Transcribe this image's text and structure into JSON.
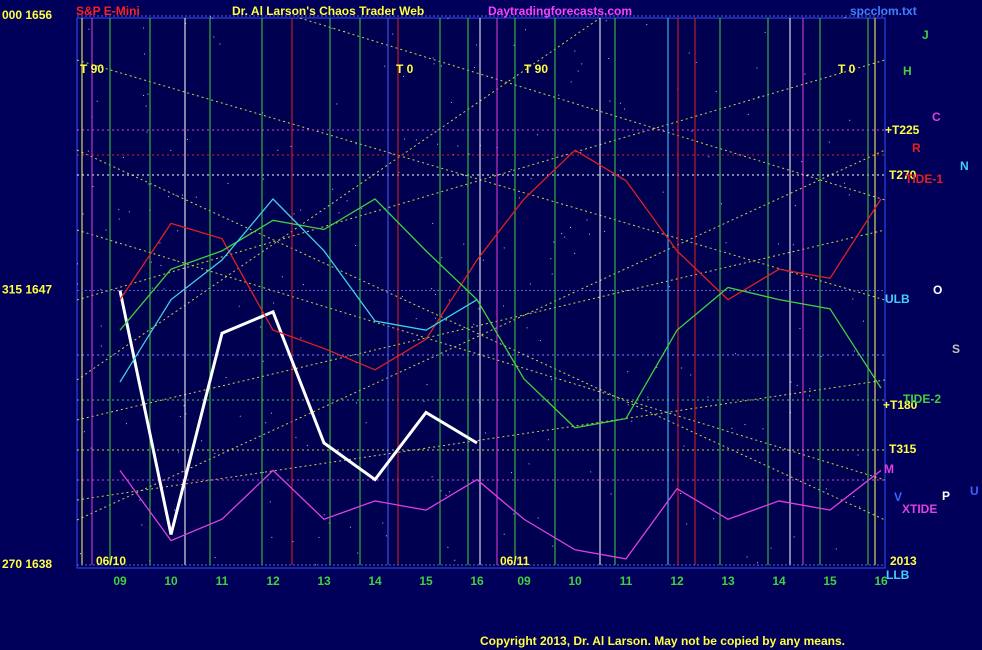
{
  "chart_data": {
    "type": "line",
    "title": "Dr. Al Larson's Chaos Trader Web",
    "annotations": [
      "S&P E-Mini",
      "Daytradingforecasts.com",
      "spcclom.txt",
      "06/10",
      "06/11",
      "2013",
      "Copyright 2013, Dr. Al Larson. May not be copied by any means.",
      "J",
      "H",
      "C",
      "+T225",
      "R",
      "N",
      "T270",
      "TIDE-1",
      "ULB",
      "O",
      "S",
      "+T180",
      "TIDE-2",
      "T315",
      "M",
      "V",
      "P",
      "U",
      "XTIDE",
      "LLB",
      "T  90",
      "T  0",
      "T  90",
      "T  0"
    ],
    "categories": [
      "09",
      "10",
      "11",
      "12",
      "13",
      "14",
      "15",
      "16",
      "09",
      "10",
      "11",
      "12",
      "13",
      "14",
      "15",
      "16"
    ],
    "ylim": [
      1638,
      1656
    ],
    "yticks": [
      {
        "value": 1656,
        "label": "000  1656"
      },
      {
        "value": 1647,
        "label": "315  1647"
      },
      {
        "value": 1638,
        "label": "270  1638"
      }
    ],
    "grid": true,
    "series": [
      {
        "color": "#ffffff",
        "values": [
          1647,
          1639,
          1645.6,
          1646.3,
          1642,
          1640.8,
          1643,
          1642,
          null,
          null,
          null,
          null,
          null,
          null,
          null,
          null
        ]
      },
      {
        "color": "#e02020",
        "values": [
          1646.7,
          1649.2,
          1648.7,
          1645.7,
          1645.1,
          1644.4,
          1645.4,
          1648.0,
          1650.0,
          1651.6,
          1650.6,
          1648.3,
          1646.7,
          1647.7,
          1647.4,
          1650.0
        ]
      },
      {
        "color": "#40d040",
        "values": [
          1645.7,
          1647.7,
          1648.3,
          1649.3,
          1649.0,
          1650.0,
          1648.3,
          1646.7,
          1644.1,
          1642.5,
          1642.8,
          1645.7,
          1647.1,
          1646.7,
          1646.4,
          1643.8
        ]
      },
      {
        "color": "#40d0e0",
        "values": [
          1644.0,
          1646.7,
          1648.0,
          1650.0,
          1648.3,
          1646.0,
          1645.7,
          1646.7,
          null,
          null,
          null,
          null,
          null,
          null,
          null,
          null
        ]
      },
      {
        "color": "#e040e0",
        "values": [
          1641.1,
          1638.8,
          1639.5,
          1641.1,
          1639.5,
          1640.1,
          1639.8,
          1640.8,
          1639.5,
          1638.5,
          1638.2,
          1640.5,
          1639.5,
          1640.1,
          1639.8,
          1641.1
        ]
      }
    ]
  }
}
